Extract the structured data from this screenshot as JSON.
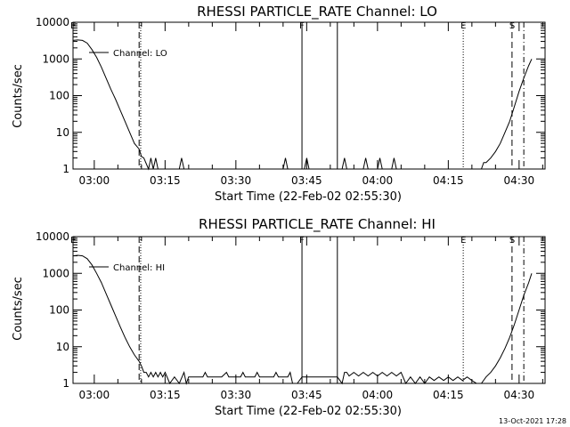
{
  "footer": {
    "timestamp": "13-Oct-2021 17:28"
  },
  "chart_data": [
    {
      "type": "line",
      "title": "RHESSI PARTICLE_RATE Channel: LO",
      "xlabel": "Start Time (22-Feb-02 02:55:30)",
      "ylabel": "Counts/sec",
      "yscale": "log",
      "ylim": [
        1,
        10000
      ],
      "xlim": [
        "02:55:30",
        "04:35:30"
      ],
      "yticks": [
        "1",
        "10",
        "100",
        "1000",
        "10000"
      ],
      "xticks": [
        "03:00",
        "03:15",
        "03:30",
        "03:45",
        "04:00",
        "04:15",
        "04:30"
      ],
      "legend": {
        "label": "Channel: LO",
        "placement": "top-left"
      },
      "markers": [
        {
          "label": "E",
          "time": "02:55:30",
          "style": "dotted"
        },
        {
          "label": "",
          "time": "03:09:30",
          "style": "dashed"
        },
        {
          "label": "",
          "time": "03:09:50",
          "style": "dotted"
        },
        {
          "label": "F",
          "time": "03:44:00",
          "style": "solid"
        },
        {
          "label": "",
          "time": "03:51:30",
          "style": "solid"
        },
        {
          "label": "E",
          "time": "04:18:10",
          "style": "dotted"
        },
        {
          "label": "S",
          "time": "04:28:30",
          "style": "dashed"
        },
        {
          "label": "",
          "time": "04:31:00",
          "style": "dashdot"
        }
      ],
      "series": [
        {
          "name": "Channel: LO",
          "points": [
            [
              "02:55:30",
              3200
            ],
            [
              "02:56:30",
              3300
            ],
            [
              "02:57:30",
              3200
            ],
            [
              "02:58:30",
              2700
            ],
            [
              "02:59:30",
              1800
            ],
            [
              "03:00:30",
              1100
            ],
            [
              "03:01:30",
              600
            ],
            [
              "03:02:30",
              300
            ],
            [
              "03:03:30",
              150
            ],
            [
              "03:04:30",
              80
            ],
            [
              "03:05:30",
              40
            ],
            [
              "03:06:30",
              20
            ],
            [
              "03:07:30",
              10
            ],
            [
              "03:08:30",
              5
            ],
            [
              "03:09:30",
              3.5
            ],
            [
              "03:10:00",
              2.2
            ],
            [
              "03:10:30",
              2
            ],
            [
              "03:11:00",
              1.4
            ],
            [
              "03:11:30",
              1
            ],
            [
              "03:12:00",
              2
            ],
            [
              "03:12:30",
              1
            ],
            [
              "03:13:00",
              2
            ],
            [
              "03:13:30",
              1
            ],
            [
              "03:18:00",
              1
            ],
            [
              "03:18:30",
              2
            ],
            [
              "03:19:00",
              1
            ],
            [
              "03:40:00",
              1
            ],
            [
              "03:40:30",
              2
            ],
            [
              "03:41:00",
              1
            ],
            [
              "03:44:30",
              1
            ],
            [
              "03:45:00",
              2
            ],
            [
              "03:45:30",
              1
            ],
            [
              "03:52:30",
              1
            ],
            [
              "03:53:00",
              2
            ],
            [
              "03:53:30",
              1
            ],
            [
              "03:57:00",
              1
            ],
            [
              "03:57:30",
              2
            ],
            [
              "03:58:00",
              1
            ],
            [
              "04:00:00",
              1
            ],
            [
              "04:00:30",
              2
            ],
            [
              "04:01:00",
              1
            ],
            [
              "04:03:00",
              1
            ],
            [
              "04:03:30",
              2
            ],
            [
              "04:04:00",
              1
            ],
            [
              "04:22:00",
              1
            ],
            [
              "04:22:30",
              1.5
            ],
            [
              "04:23:00",
              1.5
            ],
            [
              "04:24:00",
              2
            ],
            [
              "04:25:00",
              3
            ],
            [
              "04:26:00",
              5
            ],
            [
              "04:27:00",
              10
            ],
            [
              "04:28:00",
              20
            ],
            [
              "04:29:00",
              50
            ],
            [
              "04:30:00",
              130
            ],
            [
              "04:31:00",
              300
            ],
            [
              "04:32:00",
              650
            ],
            [
              "04:32:40",
              1000
            ]
          ]
        }
      ]
    },
    {
      "type": "line",
      "title": "RHESSI PARTICLE_RATE Channel: HI",
      "xlabel": "Start Time (22-Feb-02 02:55:30)",
      "ylabel": "Counts/sec",
      "yscale": "log",
      "ylim": [
        1,
        10000
      ],
      "xlim": [
        "02:55:30",
        "04:35:30"
      ],
      "yticks": [
        "1",
        "10",
        "100",
        "1000",
        "10000"
      ],
      "xticks": [
        "03:00",
        "03:15",
        "03:30",
        "03:45",
        "04:00",
        "04:15",
        "04:30"
      ],
      "legend": {
        "label": "Channel: HI",
        "placement": "top-left"
      },
      "markers": [
        {
          "label": "E",
          "time": "02:55:30",
          "style": "dotted"
        },
        {
          "label": "",
          "time": "03:09:30",
          "style": "dashed"
        },
        {
          "label": "",
          "time": "03:09:50",
          "style": "dotted"
        },
        {
          "label": "F",
          "time": "03:44:00",
          "style": "solid"
        },
        {
          "label": "",
          "time": "03:51:30",
          "style": "solid"
        },
        {
          "label": "E",
          "time": "04:18:10",
          "style": "dotted"
        },
        {
          "label": "S",
          "time": "04:28:30",
          "style": "dashed"
        },
        {
          "label": "",
          "time": "04:31:00",
          "style": "dashdot"
        }
      ],
      "series": [
        {
          "name": "Channel: HI",
          "points": [
            [
              "02:55:30",
              3000
            ],
            [
              "02:56:30",
              3100
            ],
            [
              "02:57:30",
              3000
            ],
            [
              "02:58:30",
              2500
            ],
            [
              "02:59:30",
              1700
            ],
            [
              "03:00:30",
              1000
            ],
            [
              "03:01:30",
              560
            ],
            [
              "03:02:30",
              280
            ],
            [
              "03:03:30",
              140
            ],
            [
              "03:04:30",
              70
            ],
            [
              "03:05:30",
              35
            ],
            [
              "03:06:30",
              18
            ],
            [
              "03:07:30",
              10
            ],
            [
              "03:08:30",
              6
            ],
            [
              "03:09:30",
              4
            ],
            [
              "03:10:00",
              3
            ],
            [
              "03:10:30",
              2
            ],
            [
              "03:11:00",
              2
            ],
            [
              "03:11:30",
              1.5
            ],
            [
              "03:12:00",
              2
            ],
            [
              "03:12:30",
              1.5
            ],
            [
              "03:13:00",
              2
            ],
            [
              "03:13:30",
              1.5
            ],
            [
              "03:14:00",
              2
            ],
            [
              "03:14:30",
              1.5
            ],
            [
              "03:15:00",
              2
            ],
            [
              "03:16:00",
              1
            ],
            [
              "03:17:00",
              1.5
            ],
            [
              "03:18:00",
              1
            ],
            [
              "03:19:00",
              2
            ],
            [
              "03:19:30",
              1
            ],
            [
              "03:20:00",
              1.5
            ],
            [
              "03:23:00",
              1.5
            ],
            [
              "03:23:30",
              2
            ],
            [
              "03:24:00",
              1.5
            ],
            [
              "03:27:00",
              1.5
            ],
            [
              "03:28:00",
              2
            ],
            [
              "03:28:30",
              1.5
            ],
            [
              "03:31:00",
              1.5
            ],
            [
              "03:31:30",
              2
            ],
            [
              "03:32:00",
              1.5
            ],
            [
              "03:34:00",
              1.5
            ],
            [
              "03:34:30",
              2
            ],
            [
              "03:35:00",
              1.5
            ],
            [
              "03:38:00",
              1.5
            ],
            [
              "03:38:30",
              2
            ],
            [
              "03:39:00",
              1.5
            ],
            [
              "03:41:00",
              1.5
            ],
            [
              "03:41:30",
              2
            ],
            [
              "03:42:00",
              1
            ],
            [
              "03:43:00",
              1
            ],
            [
              "03:44:00",
              1.5
            ],
            [
              "03:51:30",
              1.5
            ],
            [
              "03:52:30",
              1
            ],
            [
              "03:53:00",
              2
            ],
            [
              "03:53:30",
              2
            ],
            [
              "03:54:00",
              1.6
            ],
            [
              "03:55:00",
              2
            ],
            [
              "03:56:00",
              1.6
            ],
            [
              "03:57:00",
              2
            ],
            [
              "03:58:00",
              1.6
            ],
            [
              "03:59:00",
              2
            ],
            [
              "04:00:00",
              1.6
            ],
            [
              "04:01:00",
              2
            ],
            [
              "04:02:00",
              1.6
            ],
            [
              "04:03:00",
              2
            ],
            [
              "04:04:00",
              1.6
            ],
            [
              "04:05:00",
              2
            ],
            [
              "04:06:00",
              1
            ],
            [
              "04:07:00",
              1.5
            ],
            [
              "04:08:00",
              1
            ],
            [
              "04:09:00",
              1.5
            ],
            [
              "04:10:00",
              1
            ],
            [
              "04:11:00",
              1.5
            ],
            [
              "04:12:00",
              1.2
            ],
            [
              "04:13:00",
              1.5
            ],
            [
              "04:14:00",
              1.2
            ],
            [
              "04:15:00",
              1.5
            ],
            [
              "04:16:00",
              1.2
            ],
            [
              "04:17:00",
              1.5
            ],
            [
              "04:18:00",
              1.2
            ],
            [
              "04:19:00",
              1.5
            ],
            [
              "04:20:00",
              1.2
            ],
            [
              "04:21:00",
              1
            ],
            [
              "04:22:00",
              1
            ],
            [
              "04:23:00",
              1.5
            ],
            [
              "04:24:00",
              2
            ],
            [
              "04:25:00",
              3
            ],
            [
              "04:26:00",
              5
            ],
            [
              "04:27:00",
              9
            ],
            [
              "04:28:00",
              18
            ],
            [
              "04:29:00",
              40
            ],
            [
              "04:30:00",
              100
            ],
            [
              "04:31:00",
              250
            ],
            [
              "04:32:00",
              550
            ],
            [
              "04:32:40",
              1000
            ]
          ]
        }
      ]
    }
  ]
}
